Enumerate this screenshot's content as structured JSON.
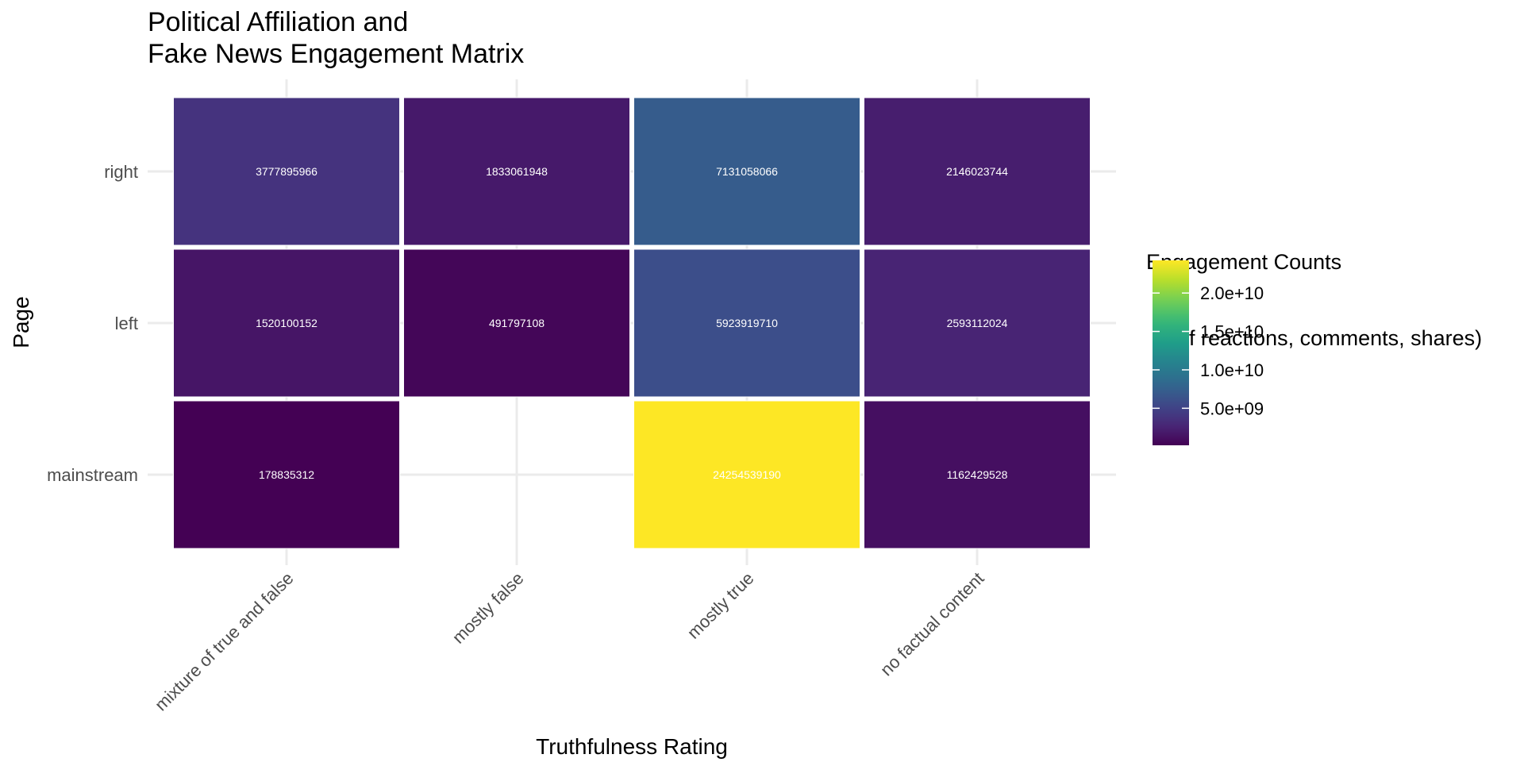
{
  "chart_data": {
    "type": "heatmap",
    "title_line1": "Political Affiliation and",
    "title_line2": "Fake News Engagement Matrix",
    "xlabel": "Truthfulness Rating",
    "ylabel": "Page",
    "x_categories": [
      "mixture of true and false",
      "mostly false",
      "mostly true",
      "no factual content"
    ],
    "y_categories": [
      "right",
      "left",
      "mainstream"
    ],
    "cells": [
      {
        "page": "right",
        "rating": "mixture of true and false",
        "value": 3777895966,
        "label": "3777895966"
      },
      {
        "page": "right",
        "rating": "mostly false",
        "value": 1833061948,
        "label": "1833061948"
      },
      {
        "page": "right",
        "rating": "mostly true",
        "value": 7131058066,
        "label": "7131058066"
      },
      {
        "page": "right",
        "rating": "no factual content",
        "value": 2146023744,
        "label": "2146023744"
      },
      {
        "page": "left",
        "rating": "mixture of true and false",
        "value": 1520100152,
        "label": "1520100152"
      },
      {
        "page": "left",
        "rating": "mostly false",
        "value": 491797108,
        "label": "491797108"
      },
      {
        "page": "left",
        "rating": "mostly true",
        "value": 5923919710,
        "label": "5923919710"
      },
      {
        "page": "left",
        "rating": "no factual content",
        "value": 2593112024,
        "label": "2593112024"
      },
      {
        "page": "mainstream",
        "rating": "mixture of true and false",
        "value": 178835312,
        "label": "178835312"
      },
      {
        "page": "mainstream",
        "rating": "no factual content",
        "value": 1162429528,
        "label": "1162429528"
      },
      {
        "page": "mainstream",
        "rating": "mostly true",
        "value": 24254539190,
        "label": "24254539190"
      }
    ],
    "color_scale": "viridis",
    "value_range": [
      178835312,
      24254539190
    ],
    "legend": {
      "title_line1": "Engagement Counts",
      "title_line2": " (# of reactions, comments, shares)",
      "breaks": [
        5000000000,
        10000000000,
        15000000000,
        20000000000
      ],
      "break_labels": [
        "5.0e+09",
        "1.0e+10",
        "1.5e+10",
        "2.0e+10"
      ],
      "placement": "right"
    },
    "grid": true
  }
}
